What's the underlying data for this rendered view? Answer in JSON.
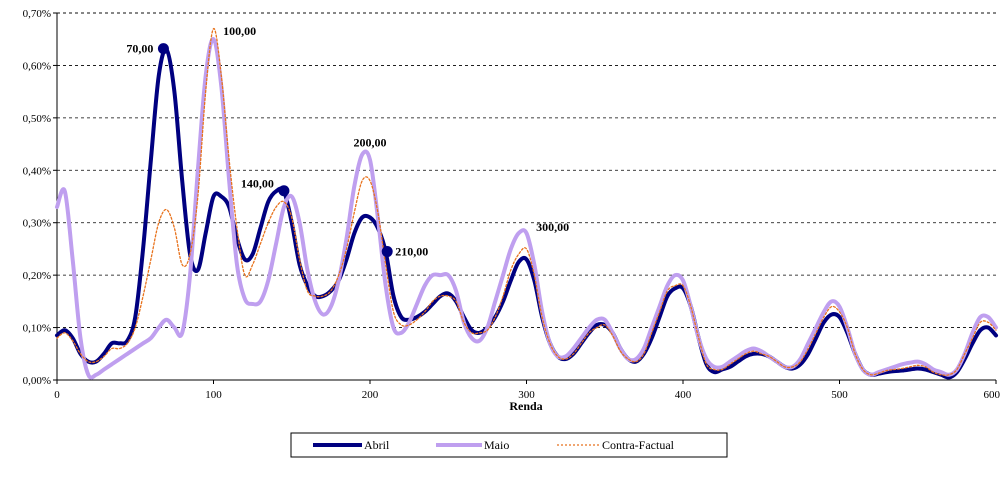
{
  "chart_data": {
    "type": "line",
    "xlabel": "Renda",
    "xlim": [
      0,
      600
    ],
    "ylim": [
      0,
      0.007
    ],
    "x_ticks": [
      {
        "v": 0,
        "label": "0"
      },
      {
        "v": 100,
        "label": "100"
      },
      {
        "v": 200,
        "label": "200"
      },
      {
        "v": 300,
        "label": "300"
      },
      {
        "v": 400,
        "label": "400"
      },
      {
        "v": 500,
        "label": "500"
      },
      {
        "v": 600,
        "label": "600"
      }
    ],
    "y_ticks": [
      {
        "v": 0,
        "label": "0,00%"
      },
      {
        "v": 0.001,
        "label": "0,10%"
      },
      {
        "v": 0.002,
        "label": "0,20%"
      },
      {
        "v": 0.003,
        "label": "0,30%"
      },
      {
        "v": 0.004,
        "label": "0,40%"
      },
      {
        "v": 0.005,
        "label": "0,50%"
      },
      {
        "v": 0.006,
        "label": "0,60%"
      },
      {
        "v": 0.007,
        "label": "0,70%"
      }
    ],
    "grid": "horizontal dashed",
    "legend_position": "bottom",
    "series": [
      {
        "name": "Abril",
        "color": "#000080",
        "style": "solid-thick",
        "x": [
          0,
          5,
          10,
          15,
          20,
          25,
          30,
          35,
          40,
          45,
          50,
          55,
          60,
          65,
          70,
          75,
          80,
          85,
          90,
          95,
          100,
          105,
          110,
          115,
          120,
          125,
          130,
          135,
          140,
          145,
          150,
          155,
          160,
          165,
          170,
          175,
          180,
          185,
          190,
          195,
          200,
          205,
          210,
          215,
          220,
          225,
          230,
          235,
          240,
          245,
          250,
          255,
          260,
          265,
          270,
          275,
          280,
          285,
          290,
          295,
          300,
          305,
          310,
          315,
          320,
          325,
          330,
          335,
          340,
          345,
          350,
          355,
          360,
          365,
          370,
          375,
          380,
          385,
          390,
          395,
          400,
          405,
          410,
          415,
          420,
          425,
          430,
          435,
          440,
          445,
          450,
          455,
          460,
          465,
          470,
          475,
          480,
          485,
          490,
          495,
          500,
          505,
          510,
          515,
          520,
          525,
          530,
          535,
          540,
          545,
          550,
          555,
          560,
          565,
          570,
          575,
          580,
          585,
          590,
          595,
          600
        ],
        "y": [
          0.00085,
          0.00095,
          0.0008,
          0.0005,
          0.00035,
          0.00035,
          0.0005,
          0.0007,
          0.0007,
          0.00075,
          0.0012,
          0.0025,
          0.0042,
          0.0058,
          0.0063,
          0.0055,
          0.0038,
          0.0024,
          0.0021,
          0.0028,
          0.0035,
          0.0035,
          0.0033,
          0.0027,
          0.0023,
          0.0024,
          0.0029,
          0.0034,
          0.0036,
          0.0036,
          0.003,
          0.0022,
          0.0018,
          0.0016,
          0.0016,
          0.0017,
          0.0019,
          0.0023,
          0.0028,
          0.0031,
          0.0031,
          0.0029,
          0.00245,
          0.0016,
          0.0012,
          0.00115,
          0.0012,
          0.0013,
          0.00145,
          0.0016,
          0.00165,
          0.0015,
          0.0012,
          0.00095,
          0.0009,
          0.001,
          0.0012,
          0.0015,
          0.0019,
          0.00225,
          0.0023,
          0.0019,
          0.0012,
          0.0007,
          0.00045,
          0.0004,
          0.0005,
          0.0007,
          0.0009,
          0.00105,
          0.00105,
          0.0009,
          0.0006,
          0.0004,
          0.00035,
          0.0005,
          0.0008,
          0.0012,
          0.0016,
          0.00175,
          0.00175,
          0.0014,
          0.0008,
          0.0003,
          0.00015,
          0.0002,
          0.00025,
          0.00035,
          0.00045,
          0.0005,
          0.0005,
          0.00045,
          0.00035,
          0.00025,
          0.00022,
          0.0003,
          0.0005,
          0.0008,
          0.0011,
          0.00125,
          0.0012,
          0.0009,
          0.0005,
          0.0002,
          0.0001,
          0.00012,
          0.00015,
          0.00017,
          0.00018,
          0.0002,
          0.00022,
          0.0002,
          0.00015,
          0.0001,
          5e-05,
          0.00015,
          0.0004,
          0.0007,
          0.00095,
          0.001,
          0.00085
        ]
      },
      {
        "name": "Maio",
        "color": "#bf9fef",
        "style": "solid-thick",
        "x": [
          0,
          5,
          10,
          15,
          20,
          25,
          30,
          35,
          40,
          45,
          50,
          55,
          60,
          65,
          70,
          75,
          80,
          85,
          90,
          95,
          100,
          105,
          110,
          115,
          120,
          125,
          130,
          135,
          140,
          145,
          150,
          155,
          160,
          165,
          170,
          175,
          180,
          185,
          190,
          195,
          200,
          205,
          210,
          215,
          220,
          225,
          230,
          235,
          240,
          245,
          250,
          255,
          260,
          265,
          270,
          275,
          280,
          285,
          290,
          295,
          300,
          305,
          310,
          315,
          320,
          325,
          330,
          335,
          340,
          345,
          350,
          355,
          360,
          365,
          370,
          375,
          380,
          385,
          390,
          395,
          400,
          405,
          410,
          415,
          420,
          425,
          430,
          435,
          440,
          445,
          450,
          455,
          460,
          465,
          470,
          475,
          480,
          485,
          490,
          495,
          500,
          505,
          510,
          515,
          520,
          525,
          530,
          535,
          540,
          545,
          550,
          555,
          560,
          565,
          570,
          575,
          580,
          585,
          590,
          595,
          600
        ],
        "y": [
          0.0033,
          0.0036,
          0.0023,
          0.0008,
          0.0001,
          0.0001,
          0.0002,
          0.0003,
          0.0004,
          0.0005,
          0.0006,
          0.0007,
          0.0008,
          0.001,
          0.00115,
          0.001,
          0.0009,
          0.002,
          0.004,
          0.0058,
          0.0065,
          0.0056,
          0.0038,
          0.0022,
          0.00155,
          0.00145,
          0.0015,
          0.0019,
          0.0026,
          0.0033,
          0.0035,
          0.003,
          0.0021,
          0.0015,
          0.00125,
          0.0014,
          0.0019,
          0.0027,
          0.0037,
          0.0043,
          0.0042,
          0.0031,
          0.0018,
          0.001,
          0.0009,
          0.0011,
          0.00145,
          0.0018,
          0.002,
          0.002,
          0.002,
          0.0017,
          0.0011,
          0.0008,
          0.00075,
          0.001,
          0.0015,
          0.002,
          0.0025,
          0.0028,
          0.0028,
          0.0022,
          0.0013,
          0.0007,
          0.00045,
          0.00045,
          0.0006,
          0.0008,
          0.001,
          0.00115,
          0.00115,
          0.0009,
          0.0006,
          0.0004,
          0.0004,
          0.0006,
          0.001,
          0.0014,
          0.0018,
          0.002,
          0.0019,
          0.0014,
          0.0008,
          0.0004,
          0.00025,
          0.00025,
          0.00035,
          0.00045,
          0.00055,
          0.0006,
          0.00055,
          0.00045,
          0.00035,
          0.00025,
          0.00025,
          0.0004,
          0.0007,
          0.001,
          0.0013,
          0.0015,
          0.0014,
          0.001,
          0.0005,
          0.0002,
          0.0001,
          0.00015,
          0.0002,
          0.00025,
          0.0003,
          0.00033,
          0.00035,
          0.0003,
          0.0002,
          0.00015,
          0.0001,
          0.0002,
          0.0005,
          0.0009,
          0.0012,
          0.0012,
          0.001
        ]
      },
      {
        "name": "Contra-Factual",
        "color": "#e8721c",
        "style": "dotted",
        "x": [
          0,
          5,
          10,
          15,
          20,
          25,
          30,
          35,
          40,
          45,
          50,
          55,
          60,
          65,
          70,
          75,
          80,
          85,
          90,
          95,
          100,
          105,
          110,
          115,
          120,
          125,
          130,
          135,
          140,
          145,
          150,
          155,
          160,
          165,
          170,
          175,
          180,
          185,
          190,
          195,
          200,
          205,
          210,
          215,
          220,
          225,
          230,
          235,
          240,
          245,
          250,
          255,
          260,
          265,
          270,
          275,
          280,
          285,
          290,
          295,
          300,
          305,
          310,
          315,
          320,
          325,
          330,
          335,
          340,
          345,
          350,
          355,
          360,
          365,
          370,
          375,
          380,
          385,
          390,
          395,
          400,
          405,
          410,
          415,
          420,
          425,
          430,
          435,
          440,
          445,
          450,
          455,
          460,
          465,
          470,
          475,
          480,
          485,
          490,
          495,
          500,
          505,
          510,
          515,
          520,
          525,
          530,
          535,
          540,
          545,
          550,
          555,
          560,
          565,
          570,
          575,
          580,
          585,
          590,
          595,
          600
        ],
        "y": [
          0.0008,
          0.0009,
          0.00075,
          0.0005,
          0.00035,
          0.00035,
          0.00045,
          0.0006,
          0.0006,
          0.0007,
          0.001,
          0.0016,
          0.0023,
          0.003,
          0.00325,
          0.0029,
          0.0022,
          0.0024,
          0.0035,
          0.0055,
          0.0067,
          0.0058,
          0.0042,
          0.0029,
          0.002,
          0.0022,
          0.0026,
          0.003,
          0.0033,
          0.0034,
          0.0031,
          0.0023,
          0.0017,
          0.0016,
          0.0016,
          0.0017,
          0.002,
          0.0025,
          0.0032,
          0.0038,
          0.0038,
          0.0032,
          0.0022,
          0.0013,
          0.00105,
          0.00105,
          0.00115,
          0.0013,
          0.0015,
          0.0016,
          0.0016,
          0.0015,
          0.0011,
          0.0009,
          0.0009,
          0.00095,
          0.0012,
          0.0016,
          0.0021,
          0.0024,
          0.0025,
          0.002,
          0.0012,
          0.0007,
          0.00045,
          0.0004,
          0.0005,
          0.0007,
          0.0009,
          0.001,
          0.00105,
          0.00085,
          0.00055,
          0.0004,
          0.00035,
          0.0005,
          0.0009,
          0.0013,
          0.0017,
          0.0018,
          0.0018,
          0.0014,
          0.0008,
          0.0003,
          0.0002,
          0.0002,
          0.0003,
          0.0004,
          0.0005,
          0.00055,
          0.0005,
          0.00045,
          0.00035,
          0.00025,
          0.00025,
          0.00035,
          0.0006,
          0.0009,
          0.0012,
          0.0014,
          0.0013,
          0.001,
          0.0005,
          0.0002,
          0.0001,
          0.00013,
          0.00018,
          0.0002,
          0.00022,
          0.00025,
          0.00028,
          0.00025,
          0.00015,
          0.0001,
          0.0001,
          0.0002,
          0.0005,
          0.0008,
          0.0011,
          0.0011,
          0.00095
        ]
      }
    ],
    "markers": [
      {
        "x": 68,
        "y": 0.00632,
        "label": "70,00",
        "series": "Abril"
      },
      {
        "x": 145,
        "y": 0.00361,
        "label": "140,00",
        "series": "Abril"
      },
      {
        "x": 211,
        "y": 0.00245,
        "label": "210,00",
        "series": "Abril"
      }
    ],
    "annotations": [
      {
        "x": 68,
        "y": 0.00632,
        "label": "70,00",
        "anchor": "end"
      },
      {
        "x": 101,
        "y": 0.0065,
        "label": "100,00",
        "anchor": "start"
      },
      {
        "x": 145,
        "y": 0.0036,
        "label": "140,00",
        "anchor": "end"
      },
      {
        "x": 200,
        "y": 0.0043,
        "label": "200,00",
        "anchor": "middle"
      },
      {
        "x": 211,
        "y": 0.00245,
        "label": "210,00",
        "anchor": "start"
      },
      {
        "x": 301,
        "y": 0.0028,
        "label": "300,00",
        "anchor": "start"
      }
    ]
  }
}
